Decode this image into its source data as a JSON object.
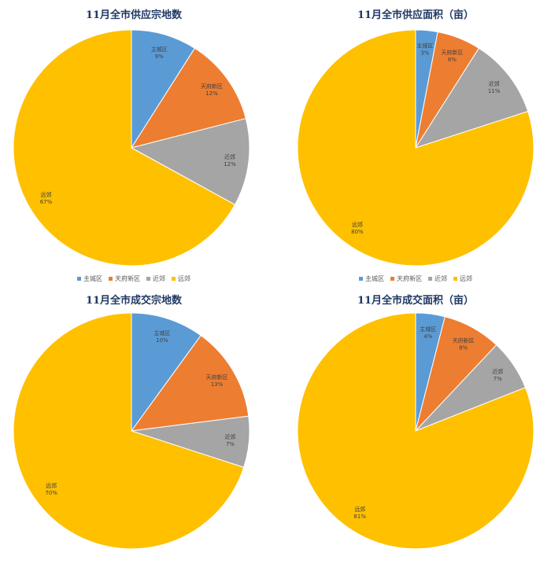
{
  "colors": {
    "主城区": "#5b9bd5",
    "天府新区": "#ed7d31",
    "近郊": "#a5a5a5",
    "远郊": "#ffc000"
  },
  "chart_data": [
    {
      "type": "pie",
      "title": "11月全市供应宗地数",
      "categories": [
        "主城区",
        "天府新区",
        "近郊",
        "远郊"
      ],
      "values": [
        9,
        12,
        12,
        67
      ],
      "labels": [
        "9%",
        "12%",
        "12%",
        "67%"
      ],
      "legend": [
        "主城区",
        "天府新区",
        "近郊",
        "远郊"
      ]
    },
    {
      "type": "pie",
      "title": "11月全市供应面积（亩）",
      "categories": [
        "主城区",
        "天府新区",
        "近郊",
        "远郊"
      ],
      "values": [
        3,
        6,
        11,
        80
      ],
      "labels": [
        "3%",
        "6%",
        "11%",
        "80%"
      ],
      "legend": [
        "主城区",
        "天府新区",
        "近郊",
        "远郊"
      ]
    },
    {
      "type": "pie",
      "title": "11月全市成交宗地数",
      "categories": [
        "主城区",
        "天府新区",
        "近郊",
        "远郊"
      ],
      "values": [
        10,
        13,
        7,
        70
      ],
      "labels": [
        "10%",
        "13%",
        "7%",
        "70%"
      ]
    },
    {
      "type": "pie",
      "title": "11月全市成交面积（亩）",
      "categories": [
        "主城区",
        "天府新区",
        "近郊",
        "远郊"
      ],
      "values": [
        4,
        8,
        7,
        81
      ],
      "labels": [
        "4%",
        "8%",
        "7%",
        "81%"
      ]
    }
  ]
}
